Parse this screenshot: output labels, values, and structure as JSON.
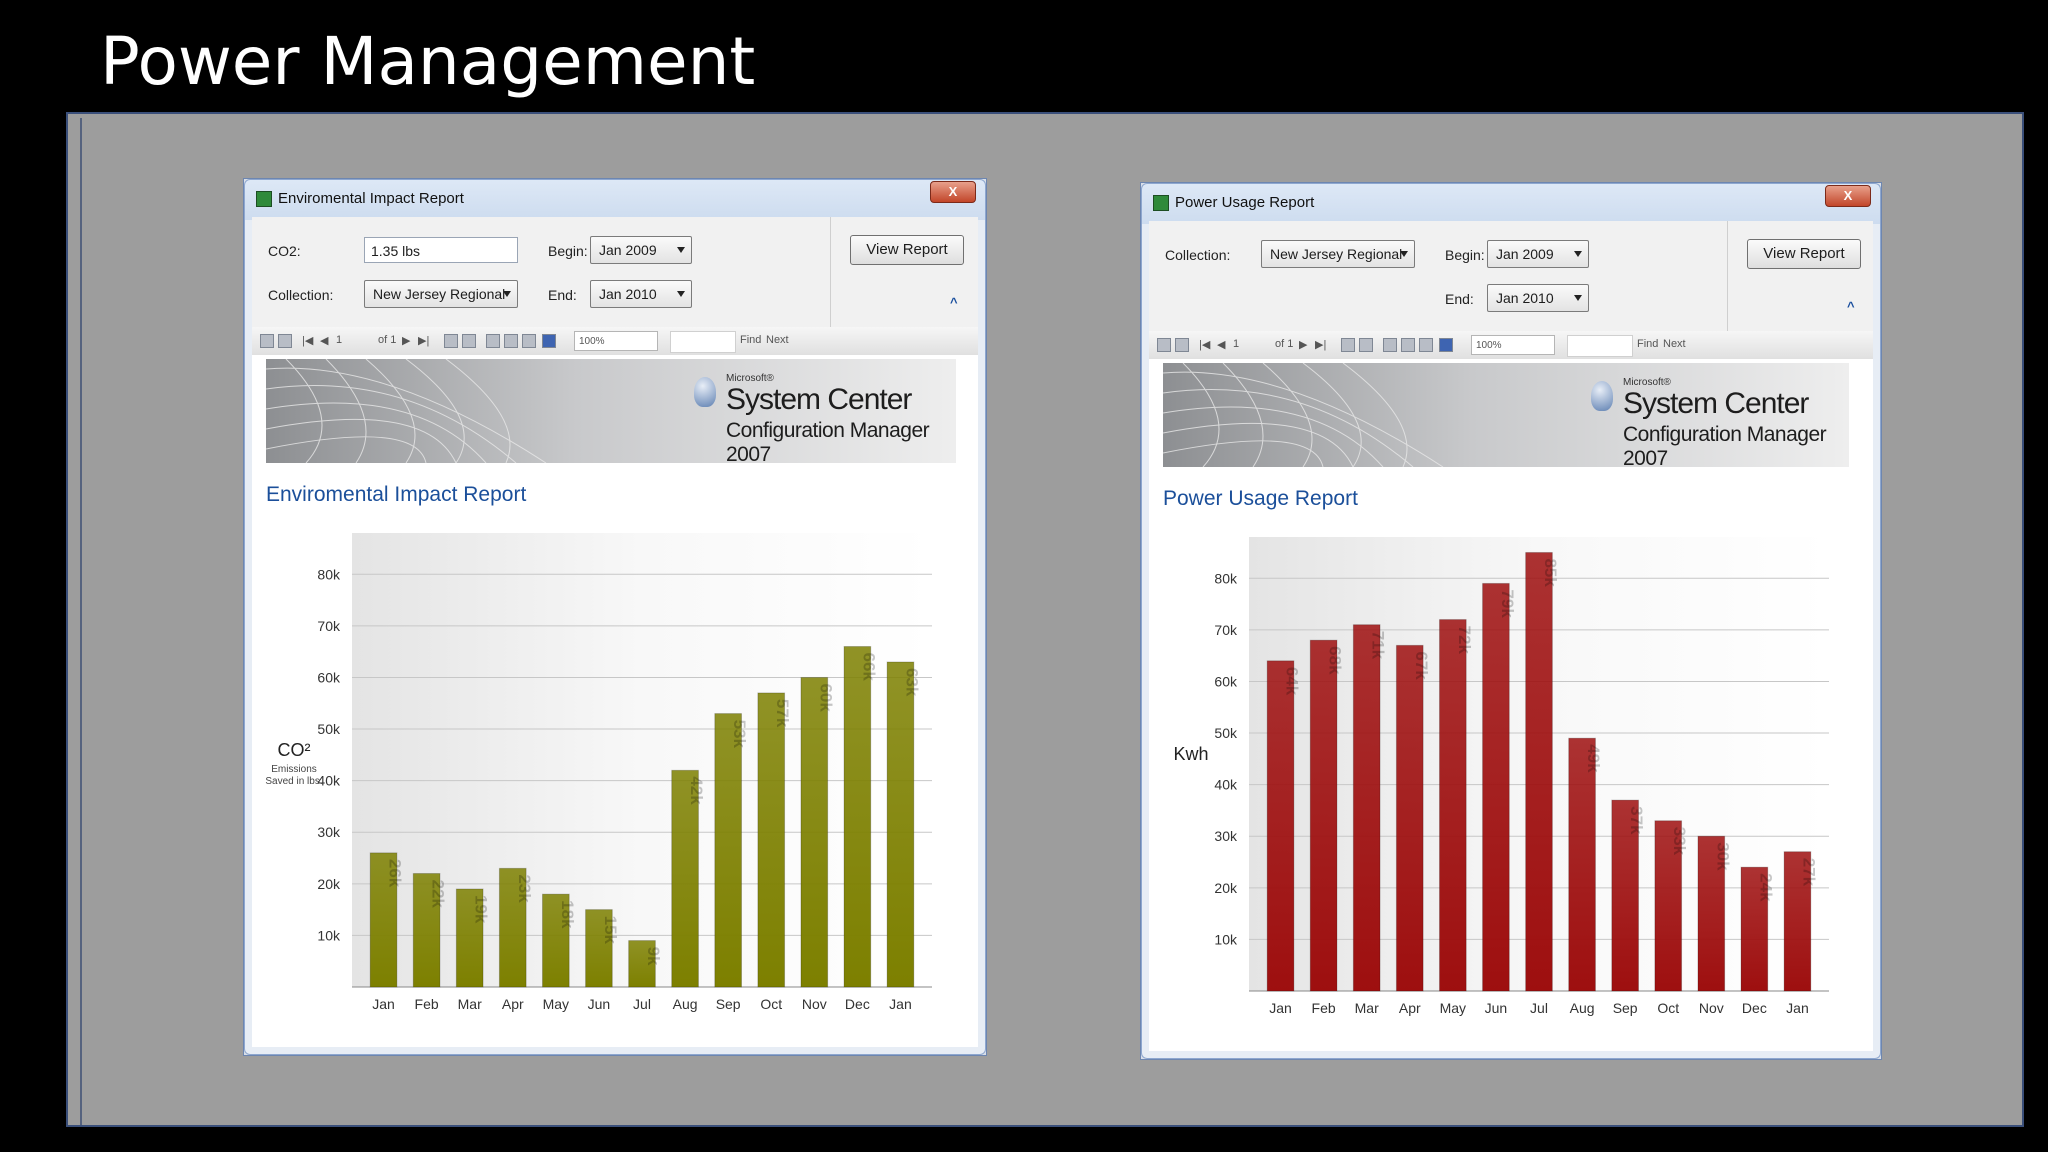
{
  "slide": {
    "title": "Power Management"
  },
  "colors": {
    "env_bar": "#7d8000",
    "power_bar": "#9e0f0f",
    "heading": "#1b4f9a"
  },
  "windows": [
    {
      "id": "env",
      "title": "Enviromental Impact Report",
      "close_label": "X",
      "params": {
        "co2_label": "CO2:",
        "co2_value": "1.35 lbs",
        "collection_label": "Collection:",
        "collection_value": "New Jersey Regional",
        "begin_label": "Begin:",
        "begin_value": "Jan 2009",
        "end_label": "End:",
        "end_value": "Jan 2010",
        "view_button": "View Report"
      },
      "toolbar": {
        "page": "1",
        "of": "of 1",
        "zoom": "100%",
        "find": "Find",
        "next": "Next"
      },
      "banner": {
        "microsoft": "Microsoft®",
        "product": "System Center",
        "subtitle": "Configuration Manager 2007"
      },
      "report_heading": "Enviromental Impact Report"
    },
    {
      "id": "power",
      "title": "Power Usage Report",
      "close_label": "X",
      "params": {
        "collection_label": "Collection:",
        "collection_value": "New Jersey Regional",
        "begin_label": "Begin:",
        "begin_value": "Jan 2009",
        "end_label": "End:",
        "end_value": "Jan 2010",
        "view_button": "View Report"
      },
      "toolbar": {
        "page": "1",
        "of": "of 1",
        "zoom": "100%",
        "find": "Find",
        "next": "Next"
      },
      "banner": {
        "microsoft": "Microsoft®",
        "product": "System Center",
        "subtitle": "Configuration Manager 2007"
      },
      "report_heading": "Power Usage Report"
    }
  ],
  "chart_data": [
    {
      "type": "bar",
      "ylabel_main": "CO²",
      "ylabel_sub": [
        "Emissions",
        "Saved in lbs."
      ],
      "categories": [
        "Jan",
        "Feb",
        "Mar",
        "Apr",
        "May",
        "Jun",
        "Jul",
        "Aug",
        "Sep",
        "Oct",
        "Nov",
        "Dec",
        "Jan"
      ],
      "values": [
        26,
        22,
        19,
        23,
        18,
        15,
        9,
        42,
        53,
        57,
        60,
        66,
        63
      ],
      "value_labels": [
        "26k",
        "22k",
        "19k",
        "23k",
        "18k",
        "15k",
        "9k",
        "42k",
        "53k",
        "57k",
        "60k",
        "66k",
        "63k"
      ],
      "yticks": [
        "10k",
        "20k",
        "30k",
        "40k",
        "50k",
        "60k",
        "70k",
        "80k"
      ],
      "ytick_values": [
        10,
        20,
        30,
        40,
        50,
        60,
        70,
        80
      ],
      "ylim": [
        0,
        88
      ],
      "grid": true
    },
    {
      "type": "bar",
      "ylabel_main": "Kwh",
      "categories": [
        "Jan",
        "Feb",
        "Mar",
        "Apr",
        "May",
        "Jun",
        "Jul",
        "Aug",
        "Sep",
        "Oct",
        "Nov",
        "Dec",
        "Jan"
      ],
      "values": [
        64,
        68,
        71,
        67,
        72,
        79,
        85,
        49,
        37,
        33,
        30,
        24,
        27
      ],
      "value_labels": [
        "64k",
        "68k",
        "71k",
        "67k",
        "72k",
        "79k",
        "85k",
        "49k",
        "37k",
        "33k",
        "30k",
        "24k",
        "27k"
      ],
      "yticks": [
        "10k",
        "20k",
        "30k",
        "40k",
        "50k",
        "60k",
        "70k",
        "80k"
      ],
      "ytick_values": [
        10,
        20,
        30,
        40,
        50,
        60,
        70,
        80
      ],
      "ylim": [
        0,
        88
      ],
      "grid": true
    }
  ]
}
